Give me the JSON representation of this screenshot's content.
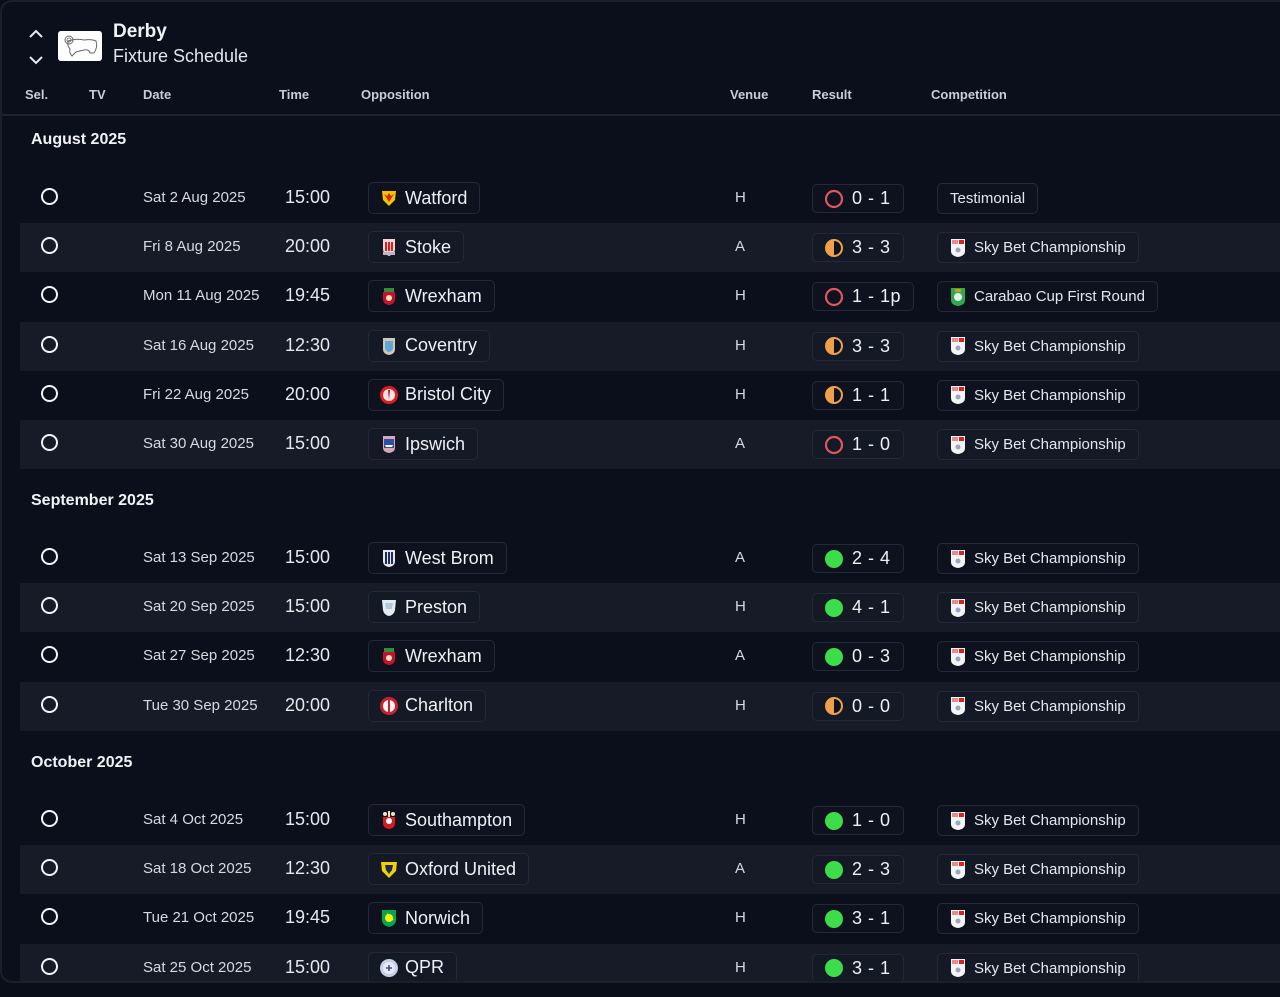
{
  "header": {
    "team": "Derby",
    "subtitle": "Fixture Schedule"
  },
  "columns": {
    "sel": "Sel.",
    "tv": "TV",
    "date": "Date",
    "time": "Time",
    "opposition": "Opposition",
    "venue": "Venue",
    "result": "Result",
    "competition": "Competition"
  },
  "colors": {
    "win": "#3ddc4a",
    "draw": "#f0a04b",
    "loss": "#e0565f"
  },
  "months": [
    {
      "label": "August 2025",
      "fixtures": [
        {
          "date": "Sat 2 Aug 2025",
          "time": "15:00",
          "opponent": "Watford",
          "badge": "watford-crest",
          "venue": "H",
          "outcome": "loss",
          "score": "0 - 1",
          "competition": "Testimonial",
          "comp_icon": "none"
        },
        {
          "date": "Fri 8 Aug 2025",
          "time": "20:00",
          "opponent": "Stoke",
          "badge": "stoke-crest",
          "venue": "A",
          "outcome": "draw",
          "score": "3 - 3",
          "competition": "Sky Bet Championship",
          "comp_icon": "efl-championship"
        },
        {
          "date": "Mon 11 Aug 2025",
          "time": "19:45",
          "opponent": "Wrexham",
          "badge": "wrexham-crest",
          "venue": "H",
          "outcome": "loss",
          "score": "1 - 1p",
          "competition": "Carabao Cup First Round",
          "comp_icon": "carabao-cup"
        },
        {
          "date": "Sat 16 Aug 2025",
          "time": "12:30",
          "opponent": "Coventry",
          "badge": "coventry-crest",
          "venue": "H",
          "outcome": "draw",
          "score": "3 - 3",
          "competition": "Sky Bet Championship",
          "comp_icon": "efl-championship"
        },
        {
          "date": "Fri 22 Aug 2025",
          "time": "20:00",
          "opponent": "Bristol City",
          "badge": "bristol-city-crest",
          "venue": "H",
          "outcome": "draw",
          "score": "1 - 1",
          "competition": "Sky Bet Championship",
          "comp_icon": "efl-championship"
        },
        {
          "date": "Sat 30 Aug 2025",
          "time": "15:00",
          "opponent": "Ipswich",
          "badge": "ipswich-crest",
          "venue": "A",
          "outcome": "loss",
          "score": "1 - 0",
          "competition": "Sky Bet Championship",
          "comp_icon": "efl-championship"
        }
      ]
    },
    {
      "label": "September 2025",
      "fixtures": [
        {
          "date": "Sat 13 Sep 2025",
          "time": "15:00",
          "opponent": "West Brom",
          "badge": "west-brom-crest",
          "venue": "A",
          "outcome": "win",
          "score": "2 - 4",
          "competition": "Sky Bet Championship",
          "comp_icon": "efl-championship"
        },
        {
          "date": "Sat 20 Sep 2025",
          "time": "15:00",
          "opponent": "Preston",
          "badge": "preston-crest",
          "venue": "H",
          "outcome": "win",
          "score": "4 - 1",
          "competition": "Sky Bet Championship",
          "comp_icon": "efl-championship"
        },
        {
          "date": "Sat 27 Sep 2025",
          "time": "12:30",
          "opponent": "Wrexham",
          "badge": "wrexham-crest",
          "venue": "A",
          "outcome": "win",
          "score": "0 - 3",
          "competition": "Sky Bet Championship",
          "comp_icon": "efl-championship"
        },
        {
          "date": "Tue 30 Sep 2025",
          "time": "20:00",
          "opponent": "Charlton",
          "badge": "charlton-crest",
          "venue": "H",
          "outcome": "draw",
          "score": "0 - 0",
          "competition": "Sky Bet Championship",
          "comp_icon": "efl-championship"
        }
      ]
    },
    {
      "label": "October 2025",
      "fixtures": [
        {
          "date": "Sat 4 Oct 2025",
          "time": "15:00",
          "opponent": "Southampton",
          "badge": "southampton-crest",
          "venue": "H",
          "outcome": "win",
          "score": "1 - 0",
          "competition": "Sky Bet Championship",
          "comp_icon": "efl-championship"
        },
        {
          "date": "Sat 18 Oct 2025",
          "time": "12:30",
          "opponent": "Oxford United",
          "badge": "oxford-united-crest",
          "venue": "A",
          "outcome": "win",
          "score": "2 - 3",
          "competition": "Sky Bet Championship",
          "comp_icon": "efl-championship"
        },
        {
          "date": "Tue 21 Oct 2025",
          "time": "19:45",
          "opponent": "Norwich",
          "badge": "norwich-crest",
          "venue": "H",
          "outcome": "win",
          "score": "3 - 1",
          "competition": "Sky Bet Championship",
          "comp_icon": "efl-championship"
        },
        {
          "date": "Sat 25 Oct 2025",
          "time": "15:00",
          "opponent": "QPR",
          "badge": "qpr-crest",
          "venue": "H",
          "outcome": "win",
          "score": "3 - 1",
          "competition": "Sky Bet Championship",
          "comp_icon": "efl-championship"
        }
      ]
    }
  ]
}
